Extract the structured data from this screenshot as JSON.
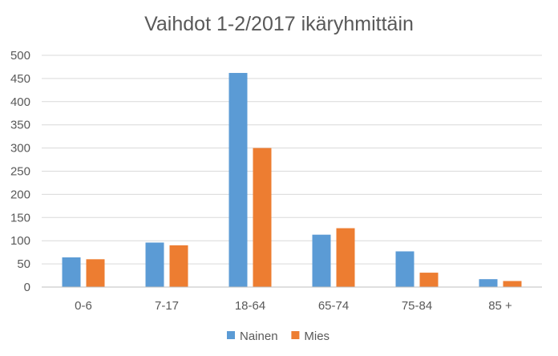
{
  "chart_data": {
    "type": "bar",
    "title": "Vaihdot 1-2/2017 ikäryhmittäin",
    "categories": [
      "0-6",
      "7-17",
      "18-64",
      "65-74",
      "75-84",
      "85 +"
    ],
    "series": [
      {
        "name": "Nainen",
        "color": "#5b9bd5",
        "values": [
          64,
          96,
          462,
          113,
          77,
          17
        ]
      },
      {
        "name": "Mies",
        "color": "#ed7d31",
        "values": [
          60,
          90,
          300,
          127,
          31,
          13
        ]
      }
    ],
    "ylim": [
      0,
      500
    ],
    "yticks": [
      0,
      50,
      100,
      150,
      200,
      250,
      300,
      350,
      400,
      450,
      500
    ],
    "grid": true,
    "legend_position": "bottom"
  }
}
